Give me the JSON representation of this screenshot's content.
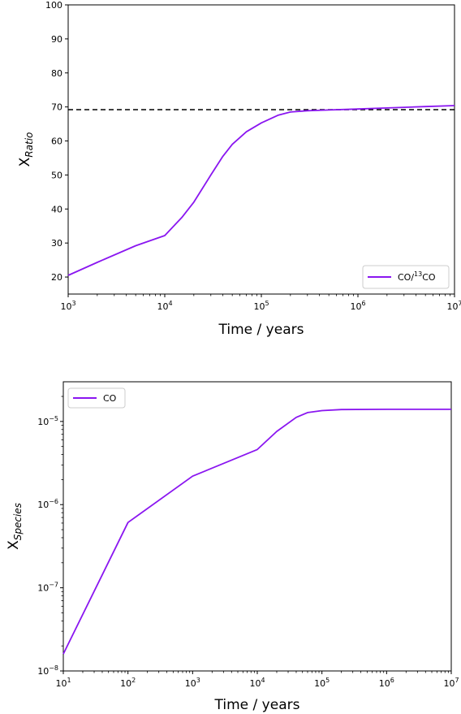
{
  "chart_data": [
    {
      "type": "line",
      "xscale": "log",
      "xlim": [
        1000,
        10000000
      ],
      "ylim": [
        15,
        100
      ],
      "xticks": [
        {
          "value": 1000,
          "base": "10",
          "exp": "3"
        },
        {
          "value": 10000,
          "base": "10",
          "exp": "4"
        },
        {
          "value": 100000,
          "base": "10",
          "exp": "5"
        },
        {
          "value": 1000000,
          "base": "10",
          "exp": "6"
        },
        {
          "value": 10000000,
          "base": "10",
          "exp": "7"
        }
      ],
      "yticks": [
        20,
        30,
        40,
        50,
        60,
        70,
        80,
        90,
        100
      ],
      "xlabel": "Time / years",
      "ylabel": {
        "main": "X",
        "sub": "Ratio"
      },
      "legend": {
        "position": "lower-right",
        "label_main": "CO/",
        "label_sup": "13",
        "label_tail": "CO"
      },
      "hline": {
        "y": 69.2,
        "style": "dashed",
        "color": "#000000"
      },
      "series": [
        {
          "name": "CO/13CO",
          "color": "#8a16f0",
          "x": [
            1000,
            2000,
            5000,
            10000,
            15000,
            20000,
            30000,
            40000,
            50000,
            70000,
            100000,
            150000,
            200000,
            300000,
            500000,
            1000000,
            2000000,
            5000000,
            10000000
          ],
          "y": [
            20.5,
            24.3,
            29.2,
            32.2,
            37.5,
            42.0,
            50.0,
            55.5,
            59.0,
            62.7,
            65.3,
            67.6,
            68.5,
            68.9,
            69.1,
            69.4,
            69.7,
            70.1,
            70.4
          ]
        }
      ]
    },
    {
      "type": "line",
      "xscale": "log",
      "yscale": "log",
      "xlim": [
        10,
        10000000
      ],
      "ylim": [
        1e-08,
        3e-05
      ],
      "xticks": [
        {
          "value": 10,
          "base": "10",
          "exp": "1"
        },
        {
          "value": 100,
          "base": "10",
          "exp": "2"
        },
        {
          "value": 1000,
          "base": "10",
          "exp": "3"
        },
        {
          "value": 10000,
          "base": "10",
          "exp": "4"
        },
        {
          "value": 100000,
          "base": "10",
          "exp": "5"
        },
        {
          "value": 1000000,
          "base": "10",
          "exp": "6"
        },
        {
          "value": 10000000,
          "base": "10",
          "exp": "7"
        }
      ],
      "yticks": [
        {
          "value": 1e-08,
          "base": "10",
          "exp": "−8"
        },
        {
          "value": 1e-07,
          "base": "10",
          "exp": "−7"
        },
        {
          "value": 1e-06,
          "base": "10",
          "exp": "−6"
        },
        {
          "value": 1e-05,
          "base": "10",
          "exp": "−5"
        }
      ],
      "xlabel": "Time / years",
      "ylabel": {
        "main": "X",
        "sub": "Species"
      },
      "legend": {
        "position": "upper-left",
        "label": "CO"
      },
      "series": [
        {
          "name": "CO",
          "color": "#8a16f0",
          "x": [
            10,
            100,
            1000,
            10000,
            20000,
            40000,
            60000,
            100000,
            200000,
            1000000,
            10000000
          ],
          "y": [
            1.6e-08,
            6.1e-07,
            2.2e-06,
            4.6e-06,
            7.6e-06,
            1.12e-05,
            1.28e-05,
            1.35e-05,
            1.39e-05,
            1.4e-05,
            1.4e-05
          ]
        }
      ]
    }
  ]
}
